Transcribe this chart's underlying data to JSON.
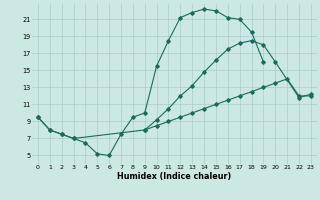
{
  "xlabel": "Humidex (Indice chaleur)",
  "bg_color": "#cce8e4",
  "grid_color": "#aacccc",
  "line_color": "#1a6b5a",
  "xlim": [
    -0.5,
    23.5
  ],
  "ylim": [
    4.0,
    22.8
  ],
  "xticks": [
    0,
    1,
    2,
    3,
    4,
    5,
    6,
    7,
    8,
    9,
    10,
    11,
    12,
    13,
    14,
    15,
    16,
    17,
    18,
    19,
    20,
    21,
    22,
    23
  ],
  "yticks": [
    5,
    7,
    9,
    11,
    13,
    15,
    17,
    19,
    21
  ],
  "line1_x": [
    0,
    1,
    2,
    3,
    4,
    5,
    6,
    7,
    8,
    9,
    10,
    11,
    12,
    13,
    14,
    15,
    16,
    17,
    18,
    19
  ],
  "line1_y": [
    9.5,
    8.0,
    7.5,
    7.0,
    6.5,
    5.2,
    5.0,
    7.5,
    9.5,
    10.0,
    15.5,
    18.5,
    21.2,
    21.8,
    22.2,
    22.0,
    21.2,
    21.0,
    19.5,
    16.0
  ],
  "line2_x": [
    0,
    1,
    2,
    3,
    9,
    10,
    11,
    12,
    13,
    14,
    15,
    16,
    17,
    18,
    19,
    20,
    21,
    22,
    23
  ],
  "line2_y": [
    9.5,
    8.0,
    7.5,
    7.0,
    8.0,
    8.5,
    9.0,
    9.5,
    10.0,
    10.5,
    11.0,
    11.5,
    12.0,
    12.5,
    13.0,
    13.5,
    14.0,
    12.0,
    12.0
  ],
  "line3_x": [
    9,
    10,
    11,
    12,
    13,
    14,
    15,
    16,
    17,
    18,
    19,
    20,
    22,
    23
  ],
  "line3_y": [
    8.0,
    9.2,
    10.5,
    12.0,
    13.2,
    14.8,
    16.2,
    17.5,
    18.2,
    18.5,
    18.0,
    16.0,
    11.8,
    12.2
  ]
}
